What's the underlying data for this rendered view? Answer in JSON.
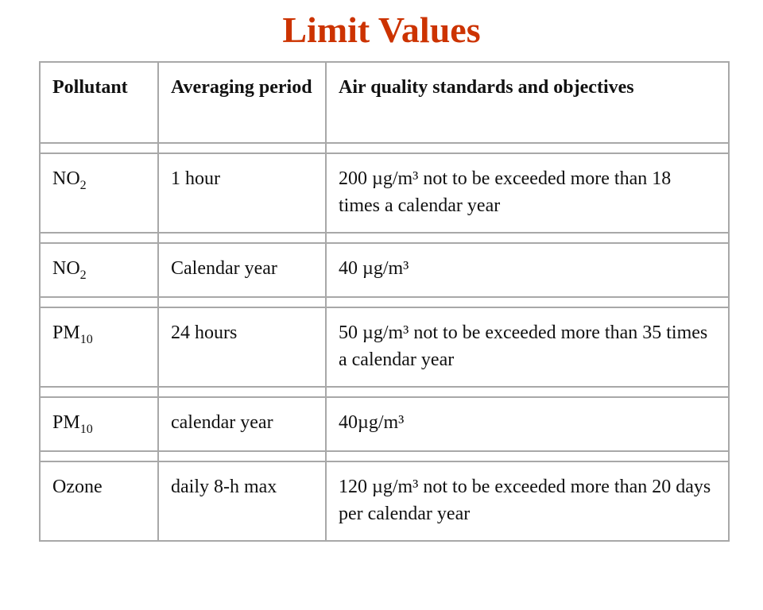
{
  "title": "Limit Values",
  "table": {
    "header": [
      "Pollutant",
      "Averaging period",
      "Air quality standards and objectives"
    ],
    "rows": [
      {
        "pollutant": {
          "text": "NO",
          "sub": "2"
        },
        "period": "1 hour",
        "standard": "200 µg/m³ not to be exceeded more than 18 times a calendar year"
      },
      {
        "pollutant": {
          "text": "NO",
          "sub": "2"
        },
        "period": "Calendar year",
        "standard": "40 µg/m³"
      },
      {
        "pollutant": {
          "text": "PM",
          "sub": "10"
        },
        "period": "24 hours",
        "standard": "50 µg/m³ not to be exceeded more than 35 times a calendar year"
      },
      {
        "pollutant": {
          "text": "PM",
          "sub": "10"
        },
        "period": "calendar year",
        "standard": "40µg/m³"
      },
      {
        "pollutant": {
          "text": "Ozone"
        },
        "period": "daily 8-h max",
        "standard": "120 µg/m³ not to be exceeded more than 20 days per calendar year"
      }
    ]
  }
}
